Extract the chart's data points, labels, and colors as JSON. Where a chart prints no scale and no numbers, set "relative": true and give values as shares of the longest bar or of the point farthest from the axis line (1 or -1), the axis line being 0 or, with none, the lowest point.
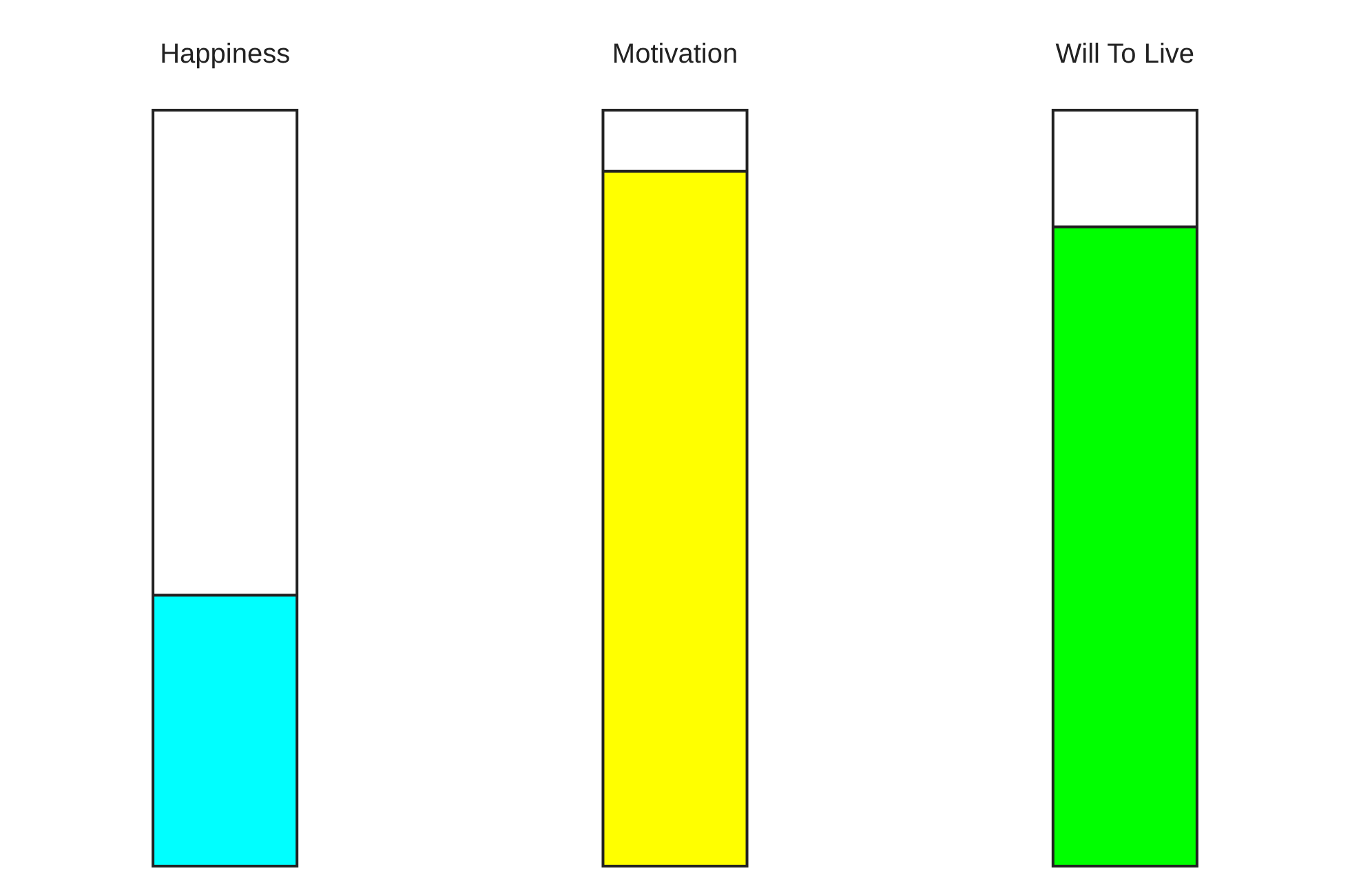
{
  "chart_data": {
    "type": "bar",
    "relative": true,
    "categories": [
      "Happiness",
      "Motivation",
      "Will To Live"
    ],
    "colors": [
      "#00ffff",
      "#ffff00",
      "#00ff00"
    ],
    "values": [
      0.39,
      1,
      0.92
    ]
  }
}
